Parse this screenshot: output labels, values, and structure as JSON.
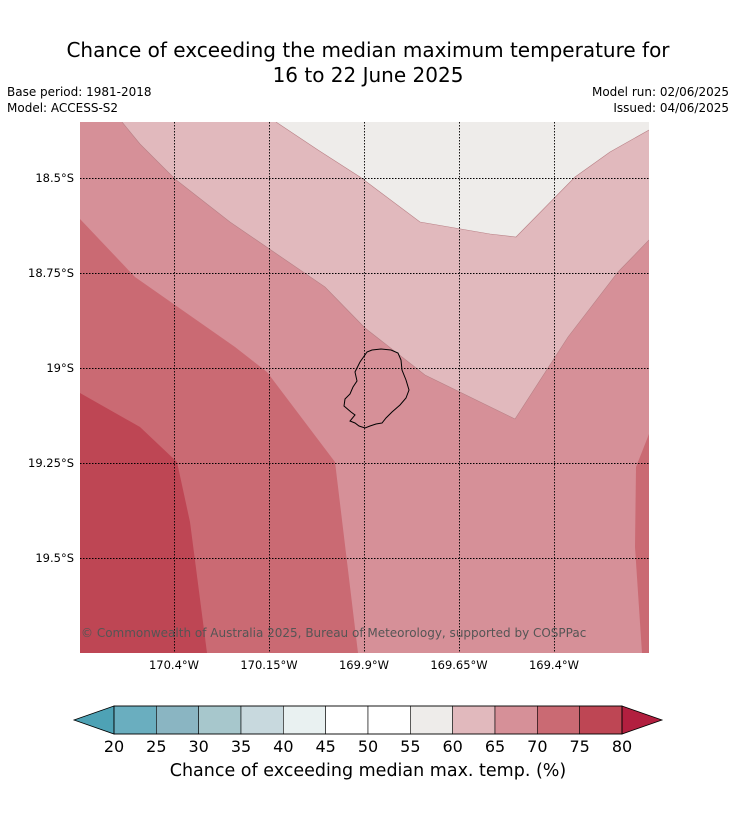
{
  "title_line1": "Chance of exceeding the median maximum temperature for",
  "title_line2": "16 to 22 June 2025",
  "base_period": "Base period: 1981-2018",
  "model": "Model: ACCESS-S2",
  "model_run": "Model run: 02/06/2025",
  "issued": "Issued: 04/06/2025",
  "credit": "© Commonwealth of Australia 2025, Bureau of Meteorology, supported by COSPPac",
  "lat_labels": [
    "18.5°S",
    "18.75°S",
    "19°S",
    "19.25°S",
    "19.5°S"
  ],
  "lon_labels": [
    "170.4°W",
    "170.15°W",
    "169.9°W",
    "169.65°W",
    "169.4°W"
  ],
  "colorbar": {
    "label": "Chance of exceeding median max. temp. (%)",
    "ticks": [
      "20",
      "25",
      "30",
      "35",
      "40",
      "45",
      "50",
      "55",
      "60",
      "65",
      "70",
      "75",
      "80"
    ],
    "colors": [
      "#6aaebf",
      "#8ab5c2",
      "#a7c7cc",
      "#c8d9de",
      "#e9f1f1",
      "#ffffff",
      "#ffffff",
      "#eeecea",
      "#e1b9bd",
      "#d69098",
      "#ca6a73",
      "#be4654"
    ],
    "under_color": "#4ea2b5",
    "over_color": "#b21f3f"
  },
  "map_colors": {
    "c55_60": "#eeecea",
    "c60_65": "#e1b9bd",
    "c65_70": "#d69098",
    "c70_75": "#ca6a73",
    "c75_80": "#be4654"
  }
}
